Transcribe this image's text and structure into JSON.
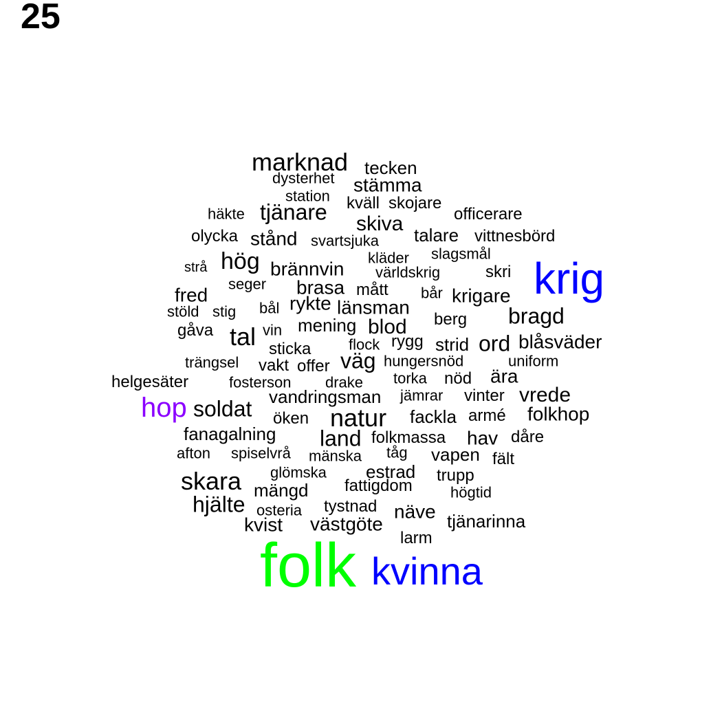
{
  "page_number": "25",
  "colors": {
    "default": "#000000",
    "blue": "#0000ff",
    "green": "#00ff00",
    "purple": "#8b00ff"
  },
  "words": [
    {
      "text": "marknad",
      "color": "default"
    },
    {
      "text": "tecken",
      "color": "default"
    },
    {
      "text": "dysterhet",
      "color": "default"
    },
    {
      "text": "stämma",
      "color": "default"
    },
    {
      "text": "station",
      "color": "default"
    },
    {
      "text": "kväll",
      "color": "default"
    },
    {
      "text": "skojare",
      "color": "default"
    },
    {
      "text": "häkte",
      "color": "default"
    },
    {
      "text": "tjänare",
      "color": "default"
    },
    {
      "text": "officerare",
      "color": "default"
    },
    {
      "text": "skiva",
      "color": "default"
    },
    {
      "text": "olycka",
      "color": "default"
    },
    {
      "text": "stånd",
      "color": "default"
    },
    {
      "text": "svartsjuka",
      "color": "default"
    },
    {
      "text": "talare",
      "color": "default"
    },
    {
      "text": "vittnesbörd",
      "color": "default"
    },
    {
      "text": "slagsmål",
      "color": "default"
    },
    {
      "text": "kläder",
      "color": "default"
    },
    {
      "text": "hög",
      "color": "default"
    },
    {
      "text": "strå",
      "color": "default"
    },
    {
      "text": "brännvin",
      "color": "default"
    },
    {
      "text": "världskrig",
      "color": "default"
    },
    {
      "text": "skri",
      "color": "default"
    },
    {
      "text": "krig",
      "color": "blue"
    },
    {
      "text": "seger",
      "color": "default"
    },
    {
      "text": "brasa",
      "color": "default"
    },
    {
      "text": "mått",
      "color": "default"
    },
    {
      "text": "bår",
      "color": "default"
    },
    {
      "text": "krigare",
      "color": "default"
    },
    {
      "text": "fred",
      "color": "default"
    },
    {
      "text": "bål",
      "color": "default"
    },
    {
      "text": "rykte",
      "color": "default"
    },
    {
      "text": "länsman",
      "color": "default"
    },
    {
      "text": "stöld",
      "color": "default"
    },
    {
      "text": "stig",
      "color": "default"
    },
    {
      "text": "bragd",
      "color": "default"
    },
    {
      "text": "berg",
      "color": "default"
    },
    {
      "text": "gåva",
      "color": "default"
    },
    {
      "text": "vin",
      "color": "default"
    },
    {
      "text": "mening",
      "color": "default"
    },
    {
      "text": "blod",
      "color": "default"
    },
    {
      "text": "tal",
      "color": "default"
    },
    {
      "text": "flock",
      "color": "default"
    },
    {
      "text": "rygg",
      "color": "default"
    },
    {
      "text": "strid",
      "color": "default"
    },
    {
      "text": "ord",
      "color": "default"
    },
    {
      "text": "blåsväder",
      "color": "default"
    },
    {
      "text": "sticka",
      "color": "default"
    },
    {
      "text": "trängsel",
      "color": "default"
    },
    {
      "text": "vakt",
      "color": "default"
    },
    {
      "text": "offer",
      "color": "default"
    },
    {
      "text": "väg",
      "color": "default"
    },
    {
      "text": "hungersnöd",
      "color": "default"
    },
    {
      "text": "uniform",
      "color": "default"
    },
    {
      "text": "helgesäter",
      "color": "default"
    },
    {
      "text": "fosterson",
      "color": "default"
    },
    {
      "text": "drake",
      "color": "default"
    },
    {
      "text": "torka",
      "color": "default"
    },
    {
      "text": "nöd",
      "color": "default"
    },
    {
      "text": "ära",
      "color": "default"
    },
    {
      "text": "vandringsman",
      "color": "default"
    },
    {
      "text": "jämrar",
      "color": "default"
    },
    {
      "text": "vinter",
      "color": "default"
    },
    {
      "text": "vrede",
      "color": "default"
    },
    {
      "text": "hop",
      "color": "purple"
    },
    {
      "text": "soldat",
      "color": "default"
    },
    {
      "text": "öken",
      "color": "default"
    },
    {
      "text": "natur",
      "color": "default"
    },
    {
      "text": "fackla",
      "color": "default"
    },
    {
      "text": "armé",
      "color": "default"
    },
    {
      "text": "folkhop",
      "color": "default"
    },
    {
      "text": "fanagalning",
      "color": "default"
    },
    {
      "text": "land",
      "color": "default"
    },
    {
      "text": "folkmassa",
      "color": "default"
    },
    {
      "text": "hav",
      "color": "default"
    },
    {
      "text": "dåre",
      "color": "default"
    },
    {
      "text": "afton",
      "color": "default"
    },
    {
      "text": "spiselvrå",
      "color": "default"
    },
    {
      "text": "mänska",
      "color": "default"
    },
    {
      "text": "tåg",
      "color": "default"
    },
    {
      "text": "vapen",
      "color": "default"
    },
    {
      "text": "fält",
      "color": "default"
    },
    {
      "text": "glömska",
      "color": "default"
    },
    {
      "text": "estrad",
      "color": "default"
    },
    {
      "text": "trupp",
      "color": "default"
    },
    {
      "text": "skara",
      "color": "default"
    },
    {
      "text": "mängd",
      "color": "default"
    },
    {
      "text": "fattigdom",
      "color": "default"
    },
    {
      "text": "högtid",
      "color": "default"
    },
    {
      "text": "hjälte",
      "color": "default"
    },
    {
      "text": "osteria",
      "color": "default"
    },
    {
      "text": "tystnad",
      "color": "default"
    },
    {
      "text": "näve",
      "color": "default"
    },
    {
      "text": "tjänarinna",
      "color": "default"
    },
    {
      "text": "kvist",
      "color": "default"
    },
    {
      "text": "västgöte",
      "color": "default"
    },
    {
      "text": "larm",
      "color": "default"
    },
    {
      "text": "folk",
      "color": "green"
    },
    {
      "text": "kvinna",
      "color": "blue"
    }
  ]
}
